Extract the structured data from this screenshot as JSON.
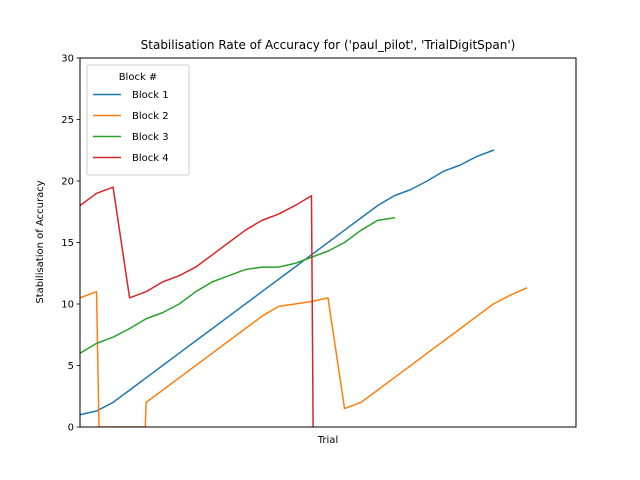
{
  "chart_data": {
    "type": "line",
    "title": "Stabilisation Rate of Accuracy for ('paul_pilot', 'TrialDigitSpan')",
    "xlabel": "Trial",
    "ylabel": "Stabilisation of Accuracy",
    "ylim": [
      0,
      30
    ],
    "yticks": [
      0,
      5,
      10,
      15,
      20,
      25,
      30
    ],
    "xlim": [
      0,
      30
    ],
    "xticks": [],
    "grid": false,
    "legend": {
      "title": "Block #",
      "placement": "top-left"
    },
    "series": [
      {
        "name": "Block 1",
        "color": "#1f77b4",
        "x": [
          0,
          1,
          2,
          3,
          4,
          5,
          6,
          7,
          8,
          9,
          10,
          11,
          12,
          13,
          14,
          15,
          16,
          17,
          18,
          19,
          20,
          21,
          22,
          23,
          24,
          25
        ],
        "y": [
          1.0,
          1.3,
          2.0,
          3.0,
          4.0,
          5.0,
          6.0,
          7.0,
          8.0,
          9.0,
          10.0,
          11.0,
          12.0,
          13.0,
          14.0,
          15.0,
          16.0,
          17.0,
          18.0,
          18.8,
          19.3,
          20.0,
          20.8,
          21.3,
          22.0,
          22.5
        ]
      },
      {
        "name": "Block 2",
        "color": "#ff7f0e",
        "x": [
          0,
          1,
          1.15,
          3.95,
          4,
          5,
          6,
          7,
          8,
          9,
          10,
          11,
          12,
          13,
          14,
          15,
          16,
          17,
          18,
          19,
          20,
          21,
          22,
          23,
          24,
          25,
          26,
          27
        ],
        "y": [
          10.5,
          11.0,
          0.0,
          0.0,
          2.0,
          3.0,
          4.0,
          5.0,
          6.0,
          7.0,
          8.0,
          9.0,
          9.8,
          10.0,
          10.2,
          10.5,
          1.5,
          2.0,
          3.0,
          4.0,
          5.0,
          6.0,
          7.0,
          8.0,
          9.0,
          10.0,
          10.7,
          11.3
        ]
      },
      {
        "name": "Block 3",
        "color": "#2ca02c",
        "x": [
          0,
          1,
          2,
          3,
          4,
          5,
          6,
          7,
          8,
          9,
          10,
          11,
          12,
          13,
          14,
          15,
          16,
          17,
          18,
          19
        ],
        "y": [
          6.0,
          6.8,
          7.3,
          8.0,
          8.8,
          9.3,
          10.0,
          11.0,
          11.8,
          12.3,
          12.8,
          13.0,
          13.0,
          13.3,
          13.8,
          14.3,
          15.0,
          16.0,
          16.8,
          17.0
        ]
      },
      {
        "name": "Block 4",
        "color": "#d62728",
        "x": [
          0,
          1,
          2,
          3,
          4,
          5,
          6,
          7,
          8,
          9,
          10,
          11,
          12,
          13,
          14,
          14.1
        ],
        "y": [
          18.0,
          19.0,
          19.5,
          10.5,
          11.0,
          11.8,
          12.3,
          13.0,
          14.0,
          15.0,
          16.0,
          16.8,
          17.3,
          18.0,
          18.8,
          0.0
        ]
      }
    ]
  }
}
